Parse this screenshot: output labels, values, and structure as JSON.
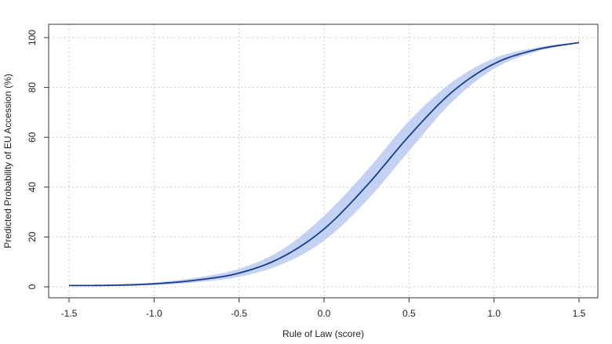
{
  "chart_data": {
    "type": "line",
    "title": "",
    "xlabel": "Rule of Law (score)",
    "ylabel": "Predicted Probability of EU Accession (%)",
    "xlim": [
      -1.5,
      1.5
    ],
    "ylim": [
      0,
      100
    ],
    "x_ticks": [
      -1.5,
      -1.0,
      -0.5,
      0.0,
      0.5,
      1.0,
      1.5
    ],
    "x_tick_labels": [
      "-1.5",
      "-1.0",
      "-0.5",
      "0.0",
      "0.5",
      "1.0",
      "1.5"
    ],
    "y_ticks": [
      0,
      20,
      40,
      60,
      80,
      100
    ],
    "y_tick_labels": [
      "0",
      "20",
      "40",
      "60",
      "80",
      "100"
    ],
    "grid": true,
    "colors": {
      "line": "#1a3a8a",
      "band": "#c3d2f2",
      "grid": "#cccccc",
      "axis": "#333333"
    },
    "series": [
      {
        "x": [
          -1.5,
          -1.25,
          -1.0,
          -0.75,
          -0.5,
          -0.25,
          0.0,
          0.25,
          0.5,
          0.75,
          1.0,
          1.25,
          1.5
        ],
        "y": [
          0.5,
          0.6,
          1.2,
          2.7,
          5.5,
          11.8,
          23.2,
          40.5,
          60.5,
          78.0,
          89.5,
          95.2,
          98.0
        ],
        "lower": [
          0.3,
          0.3,
          0.7,
          1.8,
          4.0,
          9.0,
          18.5,
          34.5,
          54.5,
          74.0,
          87.5,
          94.4,
          97.8
        ],
        "upper": [
          0.7,
          0.9,
          1.7,
          3.7,
          7.2,
          14.8,
          28.5,
          46.5,
          66.5,
          82.0,
          91.7,
          96.0,
          98.2
        ]
      }
    ]
  }
}
